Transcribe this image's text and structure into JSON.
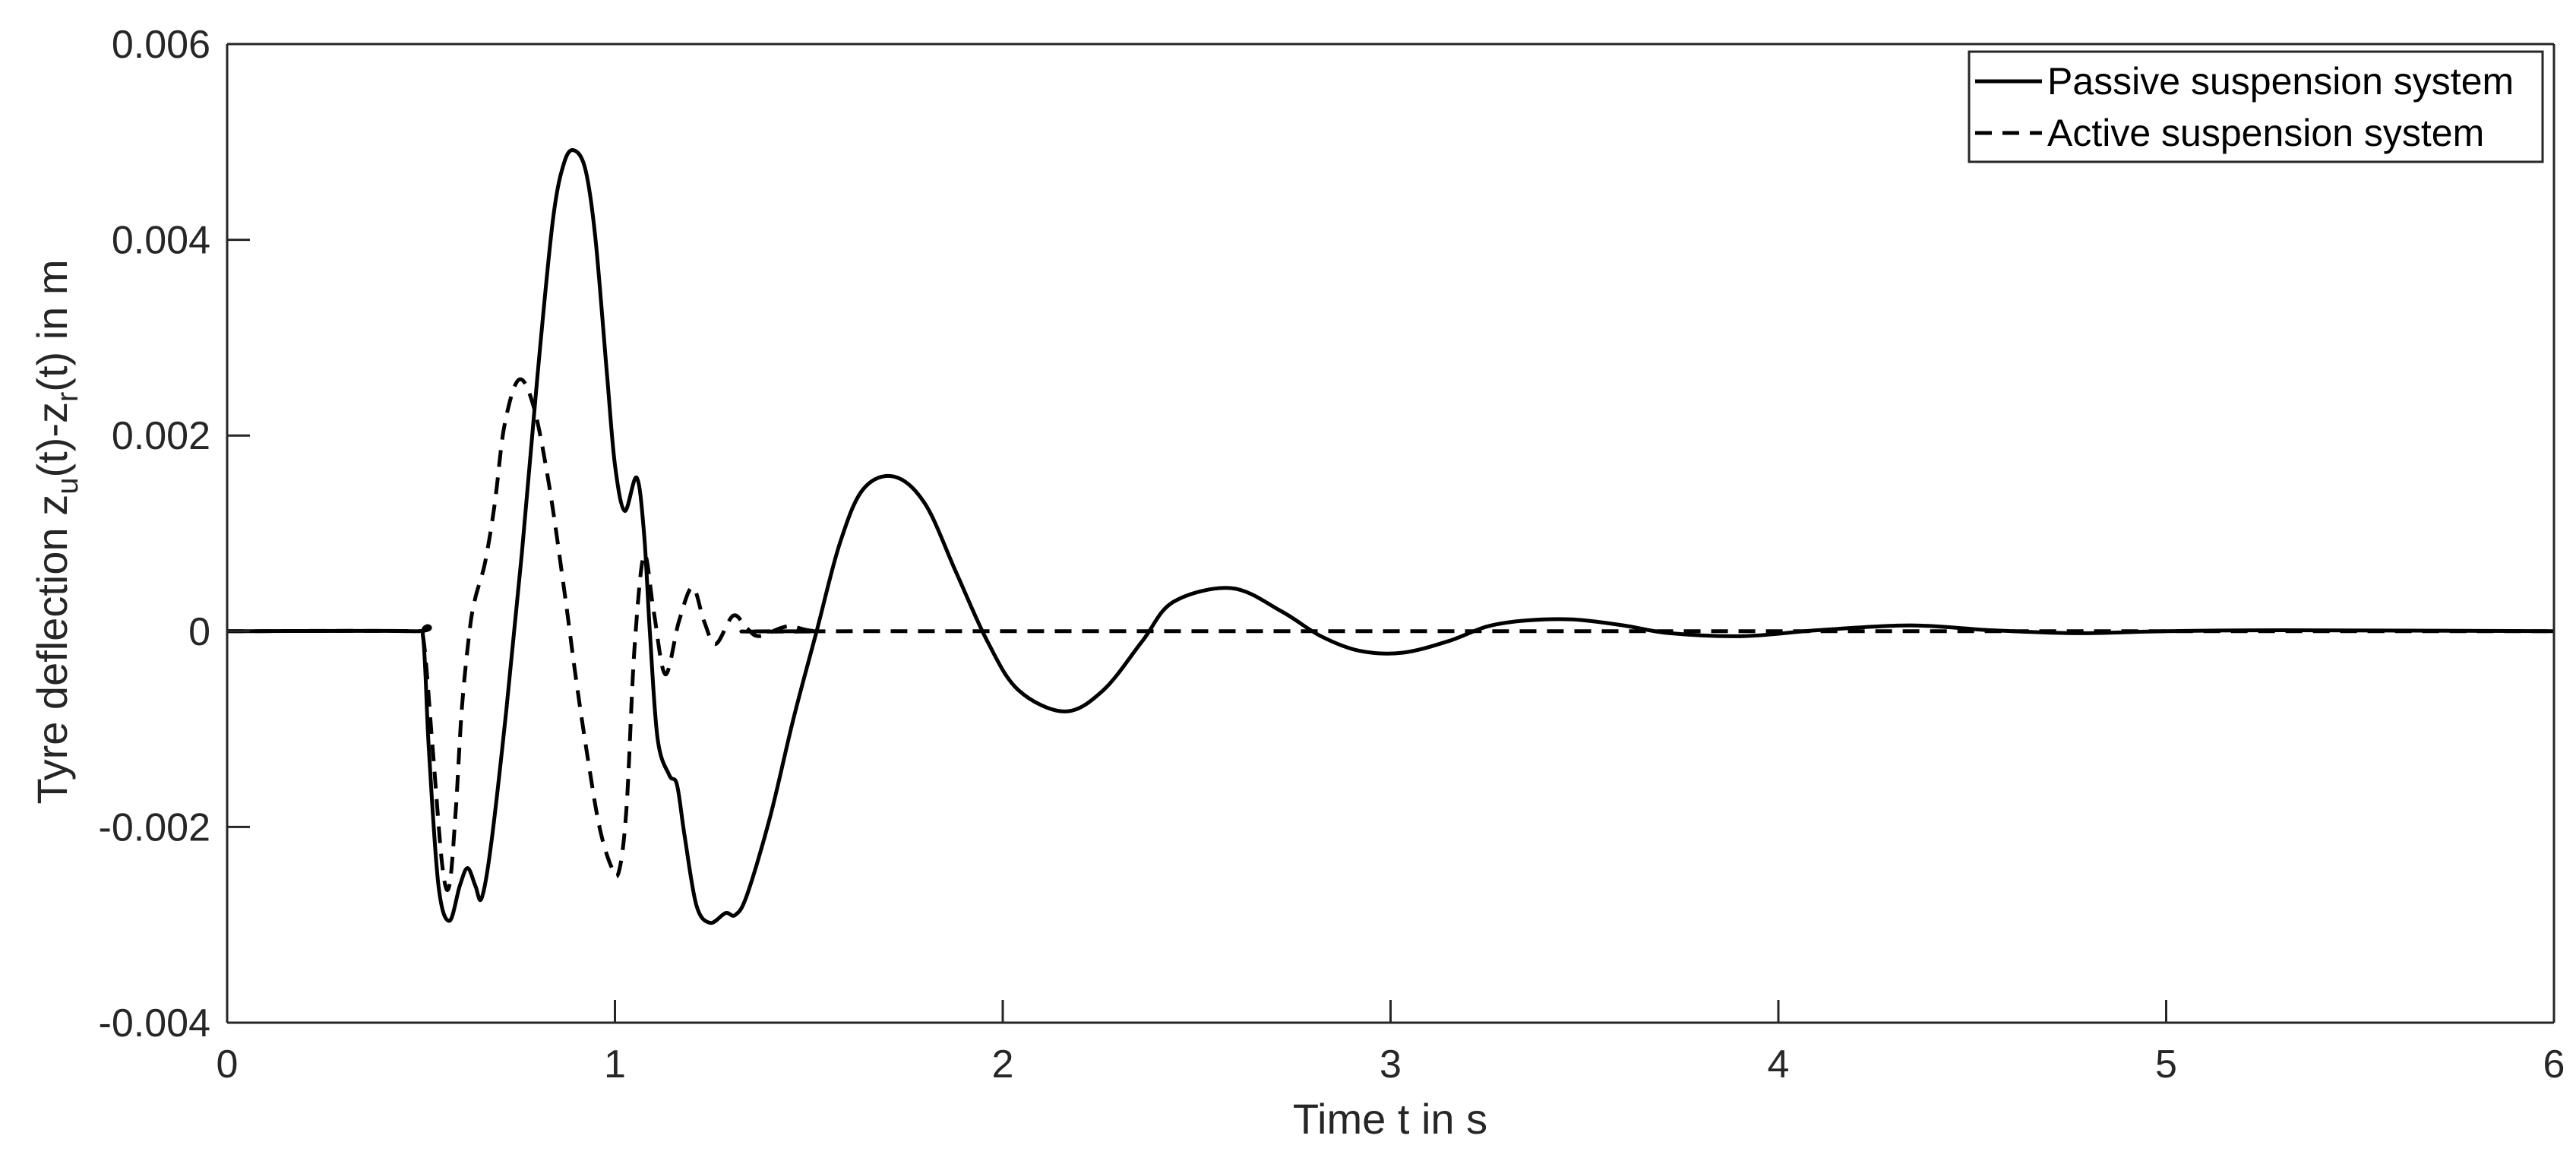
{
  "chart_data": {
    "type": "line",
    "title": "",
    "xlabel": "Time t in s",
    "ylabel": {
      "prefix": "Tyre deflection z",
      "sub1": "u",
      "mid": "(t)-z",
      "sub2": "r",
      "suffix": "(t) in m",
      "full": "Tyre deflection z_u(t)-z_r(t) in m"
    },
    "xlim": [
      0,
      6
    ],
    "ylim": [
      -0.004,
      0.006
    ],
    "xticks": [
      0,
      1,
      2,
      3,
      4,
      5,
      6
    ],
    "xtick_labels": [
      "0",
      "1",
      "2",
      "3",
      "4",
      "5",
      "6"
    ],
    "yticks": [
      -0.004,
      -0.002,
      0,
      0.002,
      0.004,
      0.006
    ],
    "ytick_labels": [
      "-0.004",
      "-0.002",
      "0",
      "0.002",
      "0.004",
      "0.006"
    ],
    "grid": false,
    "legend": {
      "position": "upper right",
      "entries": [
        {
          "label": "Passive suspension system",
          "style": "solid"
        },
        {
          "label": "Active suspension system",
          "style": "dashed"
        }
      ]
    },
    "series": [
      {
        "name": "Passive suspension system",
        "style": "solid",
        "color": "#000000",
        "points": [
          [
            0,
            0
          ],
          [
            0.48,
            0
          ],
          [
            0.505,
            -5e-05
          ],
          [
            0.52,
            -0.0012
          ],
          [
            0.545,
            -0.0026
          ],
          [
            0.573,
            -0.00296
          ],
          [
            0.6,
            -0.0026
          ],
          [
            0.62,
            -0.00242
          ],
          [
            0.64,
            -0.0026
          ],
          [
            0.656,
            -0.00273
          ],
          [
            0.68,
            -0.0022
          ],
          [
            0.72,
            -0.0008
          ],
          [
            0.76,
            0.0008
          ],
          [
            0.8,
            0.0026
          ],
          [
            0.84,
            0.0042
          ],
          [
            0.87,
            0.0048
          ],
          [
            0.897,
            0.00491
          ],
          [
            0.925,
            0.0047
          ],
          [
            0.95,
            0.004
          ],
          [
            0.98,
            0.0026
          ],
          [
            1.0,
            0.0017
          ],
          [
            1.025,
            0.00123
          ],
          [
            1.056,
            0.00157
          ],
          [
            1.075,
            0.001
          ],
          [
            1.09,
            0.0
          ],
          [
            1.11,
            -0.0011
          ],
          [
            1.14,
            -0.00147
          ],
          [
            1.16,
            -0.00157
          ],
          [
            1.18,
            -0.0021
          ],
          [
            1.21,
            -0.0028
          ],
          [
            1.245,
            -0.00298
          ],
          [
            1.285,
            -0.00288
          ],
          [
            1.31,
            -0.0029
          ],
          [
            1.34,
            -0.0027
          ],
          [
            1.4,
            -0.0019
          ],
          [
            1.46,
            -0.0009
          ],
          [
            1.52,
            0.0
          ],
          [
            1.58,
            0.0009
          ],
          [
            1.64,
            0.00145
          ],
          [
            1.72,
            0.00158
          ],
          [
            1.8,
            0.0013
          ],
          [
            1.88,
            0.0006
          ],
          [
            1.96,
            -0.0001
          ],
          [
            2.04,
            -0.0006
          ],
          [
            2.16,
            -0.00082
          ],
          [
            2.26,
            -0.0006
          ],
          [
            2.36,
            -0.0001
          ],
          [
            2.44,
            0.0003
          ],
          [
            2.59,
            0.00044
          ],
          [
            2.72,
            0.0002
          ],
          [
            2.82,
            -5e-05
          ],
          [
            2.92,
            -0.0002
          ],
          [
            3.03,
            -0.00022
          ],
          [
            3.15,
            -0.0001
          ],
          [
            3.25,
            5e-05
          ],
          [
            3.35,
            0.00011
          ],
          [
            3.47,
            0.00012
          ],
          [
            3.6,
            6e-05
          ],
          [
            3.72,
            -2e-05
          ],
          [
            3.91,
            -5e-05
          ],
          [
            4.1,
            1e-05
          ],
          [
            4.34,
            6e-05
          ],
          [
            4.55,
            1e-05
          ],
          [
            4.77,
            -2e-05
          ],
          [
            5.0,
            0.0
          ],
          [
            5.3,
            1e-05
          ],
          [
            6,
            0
          ]
        ]
      },
      {
        "name": "Active suspension system",
        "style": "dashed",
        "color": "#000000",
        "points": [
          [
            0,
            0
          ],
          [
            0.48,
            0
          ],
          [
            0.505,
            -5e-05
          ],
          [
            0.53,
            -0.0012
          ],
          [
            0.555,
            -0.0024
          ],
          [
            0.573,
            -0.0026
          ],
          [
            0.59,
            -0.0018
          ],
          [
            0.605,
            -0.0008
          ],
          [
            0.625,
            0.0
          ],
          [
            0.64,
            0.00034
          ],
          [
            0.665,
            0.0007
          ],
          [
            0.69,
            0.0013
          ],
          [
            0.715,
            0.0021
          ],
          [
            0.752,
            0.00257
          ],
          [
            0.79,
            0.0023
          ],
          [
            0.83,
            0.0015
          ],
          [
            0.87,
            0.0004
          ],
          [
            0.9,
            -0.0005
          ],
          [
            0.93,
            -0.0013
          ],
          [
            0.96,
            -0.002
          ],
          [
            0.99,
            -0.0024
          ],
          [
            1.01,
            -0.00246
          ],
          [
            1.03,
            -0.0018
          ],
          [
            1.05,
            -0.0002
          ],
          [
            1.075,
            0.00078
          ],
          [
            1.1,
            0.0002
          ],
          [
            1.13,
            -0.00044
          ],
          [
            1.165,
            0.0001
          ],
          [
            1.2,
            0.00045
          ],
          [
            1.23,
            0.0001
          ],
          [
            1.26,
            -0.00013
          ],
          [
            1.305,
            0.00016
          ],
          [
            1.34,
            3e-05
          ],
          [
            1.373,
            -5e-05
          ],
          [
            1.445,
            5e-05
          ],
          [
            1.52,
            0.0
          ],
          [
            1.7,
            0.0
          ],
          [
            6,
            0
          ]
        ]
      }
    ]
  },
  "legend": {
    "passive_label": "Passive suspension system",
    "active_label": "Active suspension system"
  },
  "axes": {
    "xlabel": "Time t in s",
    "ylabel_prefix": "Tyre deflection z",
    "ylabel_sub1": "u",
    "ylabel_mid": "(t)-z",
    "ylabel_sub2": "r",
    "ylabel_suffix": "(t) in m",
    "xtick_labels": [
      "0",
      "1",
      "2",
      "3",
      "4",
      "5",
      "6"
    ],
    "ytick_labels": [
      "-0.004",
      "-0.002",
      "0",
      "0.002",
      "0.004",
      "0.006"
    ]
  }
}
